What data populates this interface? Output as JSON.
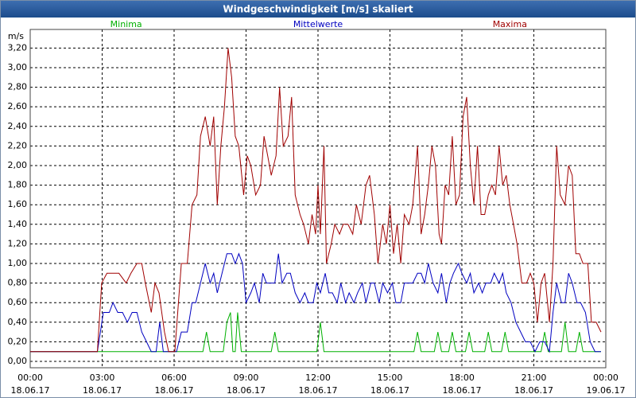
{
  "chart_data": {
    "type": "line",
    "title": "Windgeschwindigkeit [m/s] skaliert",
    "y_label": "m/s",
    "xlim": [
      0,
      24
    ],
    "ylim": [
      -0.065,
      3.39
    ],
    "grid": true,
    "xticks": [
      {
        "value": 0,
        "label": "00:00"
      },
      {
        "value": 3,
        "label": "03:00"
      },
      {
        "value": 6,
        "label": "06:00"
      },
      {
        "value": 9,
        "label": "09:00"
      },
      {
        "value": 12,
        "label": "12:00"
      },
      {
        "value": 15,
        "label": "15:00"
      },
      {
        "value": 18,
        "label": "18:00"
      },
      {
        "value": 21,
        "label": "21:00"
      },
      {
        "value": 24,
        "label": "00:00"
      }
    ],
    "xtick_dates": [
      "18.06.17",
      "18.06.17",
      "18.06.17",
      "18.06.17",
      "18.06.17",
      "18.06.17",
      "18.06.17",
      "18.06.17",
      "19.06.17"
    ],
    "yticks": [
      {
        "value": 0,
        "label": "0,00"
      },
      {
        "value": 0.2,
        "label": "0,20"
      },
      {
        "value": 0.4,
        "label": "0,40"
      },
      {
        "value": 0.6,
        "label": "0,60"
      },
      {
        "value": 0.8,
        "label": "0,80"
      },
      {
        "value": 1.0,
        "label": "1,00"
      },
      {
        "value": 1.2,
        "label": "1,20"
      },
      {
        "value": 1.4,
        "label": "1,40"
      },
      {
        "value": 1.6,
        "label": "1,60"
      },
      {
        "value": 1.8,
        "label": "1,80"
      },
      {
        "value": 2.0,
        "label": "2,00"
      },
      {
        "value": 2.2,
        "label": "2,20"
      },
      {
        "value": 2.4,
        "label": "2,40"
      },
      {
        "value": 2.6,
        "label": "2,60"
      },
      {
        "value": 2.8,
        "label": "2,80"
      },
      {
        "value": 3.0,
        "label": "3,00"
      },
      {
        "value": 3.2,
        "label": "3,20"
      }
    ],
    "series": [
      {
        "name": "Minima",
        "color": "#00b000",
        "x": [
          0,
          7.2,
          7.35,
          7.5,
          8.05,
          8.2,
          8.35,
          8.45,
          8.55,
          8.65,
          8.8,
          10.05,
          10.2,
          10.35,
          11.95,
          12.1,
          12.25,
          16.0,
          16.15,
          16.3,
          16.85,
          17.0,
          17.15,
          17.45,
          17.6,
          17.75,
          18.15,
          18.3,
          18.45,
          18.95,
          19.1,
          19.25,
          19.65,
          19.8,
          19.95,
          21.3,
          21.45,
          21.6,
          22.15,
          22.3,
          22.45,
          22.75,
          22.9,
          23.05,
          23.8
        ],
        "values": [
          0.1,
          0.1,
          0.3,
          0.1,
          0.1,
          0.4,
          0.5,
          0.1,
          0.1,
          0.5,
          0.1,
          0.1,
          0.3,
          0.1,
          0.1,
          0.4,
          0.1,
          0.1,
          0.3,
          0.1,
          0.1,
          0.3,
          0.1,
          0.1,
          0.3,
          0.1,
          0.1,
          0.3,
          0.1,
          0.1,
          0.3,
          0.1,
          0.1,
          0.3,
          0.1,
          0.1,
          0.3,
          0.1,
          0.1,
          0.4,
          0.1,
          0.1,
          0.3,
          0.1,
          0.1
        ]
      },
      {
        "name": "Mittelwerte",
        "color": "#0000c0",
        "x": [
          0,
          2.8,
          3.05,
          3.3,
          3.45,
          3.65,
          3.85,
          4.05,
          4.25,
          4.45,
          4.65,
          4.85,
          5.05,
          5.25,
          5.4,
          5.55,
          6.1,
          6.3,
          6.55,
          6.75,
          6.9,
          7.1,
          7.3,
          7.5,
          7.65,
          7.8,
          8.0,
          8.2,
          8.4,
          8.55,
          8.7,
          8.85,
          9.0,
          9.2,
          9.35,
          9.55,
          9.7,
          9.85,
          10.0,
          10.2,
          10.35,
          10.5,
          10.7,
          10.85,
          11.05,
          11.25,
          11.45,
          11.6,
          11.8,
          11.95,
          12.1,
          12.3,
          12.45,
          12.6,
          12.8,
          12.95,
          13.15,
          13.3,
          13.5,
          13.65,
          13.85,
          14.0,
          14.2,
          14.35,
          14.55,
          14.7,
          14.9,
          15.1,
          15.25,
          15.45,
          15.6,
          15.8,
          15.95,
          16.15,
          16.3,
          16.45,
          16.6,
          16.8,
          17.0,
          17.15,
          17.35,
          17.5,
          17.65,
          17.85,
          18.0,
          18.2,
          18.35,
          18.5,
          18.7,
          18.85,
          19.0,
          19.2,
          19.35,
          19.55,
          19.7,
          19.85,
          20.05,
          20.25,
          20.45,
          20.65,
          20.85,
          21.05,
          21.25,
          21.45,
          21.65,
          21.8,
          21.95,
          22.15,
          22.3,
          22.45,
          22.6,
          22.8,
          22.95,
          23.15,
          23.35,
          23.55,
          23.8
        ],
        "values": [
          0.1,
          0.1,
          0.5,
          0.5,
          0.6,
          0.5,
          0.5,
          0.4,
          0.5,
          0.5,
          0.3,
          0.2,
          0.1,
          0.1,
          0.4,
          0.1,
          0.1,
          0.3,
          0.3,
          0.6,
          0.6,
          0.8,
          1.0,
          0.8,
          0.9,
          0.7,
          0.9,
          1.1,
          1.1,
          1.0,
          1.1,
          1.0,
          0.6,
          0.7,
          0.8,
          0.6,
          0.9,
          0.8,
          0.8,
          0.8,
          1.1,
          0.8,
          0.9,
          0.9,
          0.7,
          0.6,
          0.7,
          0.6,
          0.6,
          0.8,
          0.7,
          0.9,
          0.7,
          0.7,
          0.6,
          0.8,
          0.6,
          0.7,
          0.6,
          0.7,
          0.8,
          0.6,
          0.8,
          0.8,
          0.6,
          0.8,
          0.7,
          0.8,
          0.6,
          0.6,
          0.8,
          0.8,
          0.8,
          0.9,
          0.9,
          0.8,
          1.0,
          0.8,
          0.7,
          0.9,
          0.6,
          0.8,
          0.9,
          1.0,
          0.9,
          0.8,
          0.9,
          0.7,
          0.8,
          0.7,
          0.8,
          0.8,
          0.9,
          0.8,
          0.9,
          0.7,
          0.6,
          0.4,
          0.3,
          0.2,
          0.2,
          0.1,
          0.2,
          0.2,
          0.1,
          0.5,
          0.8,
          0.6,
          0.6,
          0.9,
          0.8,
          0.6,
          0.6,
          0.5,
          0.2,
          0.1,
          0.1
        ]
      },
      {
        "name": "Maxima",
        "color": "#a00000",
        "x": [
          0,
          2.8,
          2.98,
          3.2,
          3.7,
          4.0,
          4.2,
          4.45,
          4.65,
          4.8,
          5.05,
          5.2,
          5.37,
          5.6,
          5.77,
          6.03,
          6.3,
          6.55,
          6.75,
          6.95,
          7.1,
          7.3,
          7.5,
          7.65,
          7.8,
          7.95,
          8.1,
          8.25,
          8.4,
          8.55,
          8.7,
          8.9,
          9.05,
          9.2,
          9.4,
          9.6,
          9.75,
          9.9,
          10.05,
          10.25,
          10.4,
          10.55,
          10.75,
          10.9,
          11.05,
          11.25,
          11.4,
          11.6,
          11.75,
          11.9,
          12.0,
          12.1,
          12.25,
          12.35,
          12.55,
          12.7,
          12.9,
          13.05,
          13.25,
          13.45,
          13.6,
          13.8,
          14.0,
          14.15,
          14.35,
          14.5,
          14.7,
          14.85,
          15.0,
          15.15,
          15.3,
          15.45,
          15.6,
          15.8,
          15.95,
          16.15,
          16.3,
          16.45,
          16.6,
          16.75,
          16.9,
          17.05,
          17.15,
          17.3,
          17.45,
          17.6,
          17.75,
          17.9,
          18.05,
          18.2,
          18.35,
          18.5,
          18.65,
          18.8,
          18.95,
          19.1,
          19.25,
          19.4,
          19.55,
          19.7,
          19.85,
          20.0,
          20.15,
          20.3,
          20.5,
          20.7,
          20.85,
          21.0,
          21.15,
          21.3,
          21.45,
          21.65,
          21.8,
          21.95,
          22.1,
          22.3,
          22.45,
          22.6,
          22.75,
          22.9,
          23.05,
          23.25,
          23.4,
          23.6,
          23.8
        ],
        "values": [
          0.1,
          0.1,
          0.8,
          0.9,
          0.9,
          0.8,
          0.9,
          1.0,
          1.0,
          0.8,
          0.5,
          0.8,
          0.7,
          0.3,
          0.1,
          0.1,
          1.0,
          1.0,
          1.6,
          1.7,
          2.3,
          2.5,
          2.2,
          2.5,
          1.6,
          2.2,
          2.6,
          3.2,
          2.9,
          2.3,
          2.2,
          1.7,
          2.1,
          2.0,
          1.7,
          1.8,
          2.3,
          2.1,
          1.9,
          2.1,
          2.8,
          2.2,
          2.3,
          2.7,
          1.7,
          1.5,
          1.4,
          1.2,
          1.5,
          1.3,
          1.8,
          1.3,
          2.2,
          1.0,
          1.2,
          1.4,
          1.3,
          1.4,
          1.4,
          1.3,
          1.6,
          1.4,
          1.8,
          1.9,
          1.5,
          1.0,
          1.4,
          1.2,
          1.6,
          1.1,
          1.4,
          1.0,
          1.5,
          1.4,
          1.6,
          2.2,
          1.3,
          1.5,
          1.8,
          2.2,
          2.0,
          1.3,
          1.2,
          1.8,
          1.7,
          2.3,
          1.6,
          1.7,
          2.5,
          2.7,
          2.0,
          1.6,
          2.2,
          1.5,
          1.5,
          1.7,
          1.8,
          1.7,
          2.2,
          1.8,
          1.9,
          1.6,
          1.4,
          1.2,
          0.8,
          0.8,
          0.9,
          0.8,
          0.4,
          0.8,
          0.9,
          0.4,
          1.0,
          2.2,
          1.7,
          1.6,
          2.0,
          1.9,
          1.1,
          1.1,
          1.0,
          1.0,
          0.4,
          0.4,
          0.3
        ]
      }
    ]
  }
}
